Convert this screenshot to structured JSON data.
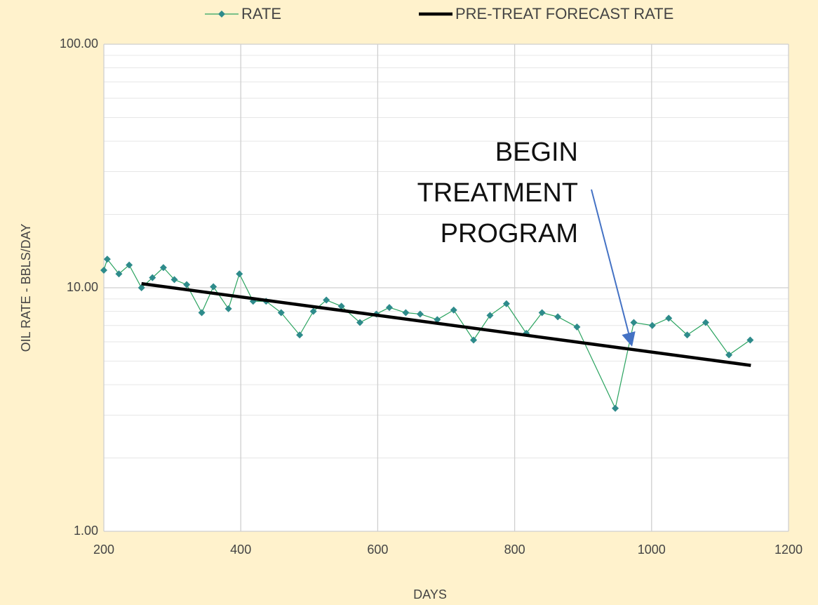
{
  "chart_data": {
    "type": "line",
    "x_label": "DAYS",
    "y_label": "OIL RATE - BBLS/DAY",
    "log_y": true,
    "grid": true,
    "legend": "top",
    "xlim": [
      200,
      1200
    ],
    "xticks": [
      200,
      400,
      600,
      800,
      1000,
      1200
    ],
    "ylim": [
      1,
      100
    ],
    "yticks": [
      {
        "value": 1,
        "label": "1.00"
      },
      {
        "value": 10,
        "label": "10.00"
      },
      {
        "value": 100,
        "label": "100.00"
      }
    ],
    "yminor_ticks": [
      2,
      3,
      4,
      5,
      6,
      7,
      8,
      9,
      20,
      30,
      40,
      50,
      60,
      70,
      80,
      90
    ],
    "annotation": "BEGIN TREATMENT PROGRAM",
    "series": [
      {
        "name": "RATE",
        "color": "#2aa35f",
        "marker_color": "#2e8b8b",
        "marker": "diamond",
        "x": [
          200,
          205,
          222,
          237,
          255,
          271,
          287,
          303,
          321,
          343,
          360,
          382,
          398,
          418,
          437,
          459,
          486,
          506,
          525,
          547,
          574,
          598,
          617,
          641,
          662,
          687,
          711,
          740,
          764,
          788,
          817,
          840,
          863,
          891,
          947,
          974,
          1001,
          1025,
          1052,
          1079,
          1113,
          1144
        ],
        "values": [
          11.8,
          13.1,
          11.4,
          12.4,
          10.0,
          11.0,
          12.1,
          10.8,
          10.3,
          7.9,
          10.1,
          8.2,
          11.4,
          8.8,
          8.8,
          7.9,
          6.4,
          8.0,
          8.9,
          8.4,
          7.2,
          7.8,
          8.3,
          7.9,
          7.8,
          7.4,
          8.1,
          6.1,
          7.7,
          8.6,
          6.5,
          7.9,
          7.6,
          6.9,
          3.2,
          7.2,
          7.0,
          7.5,
          6.4,
          7.2,
          5.3,
          6.1
        ]
      },
      {
        "name": "PRE-TREAT FORECAST RATE",
        "color": "#000000",
        "marker": "none",
        "x": [
          255,
          1145
        ],
        "values": [
          10.4,
          4.8
        ]
      }
    ]
  }
}
